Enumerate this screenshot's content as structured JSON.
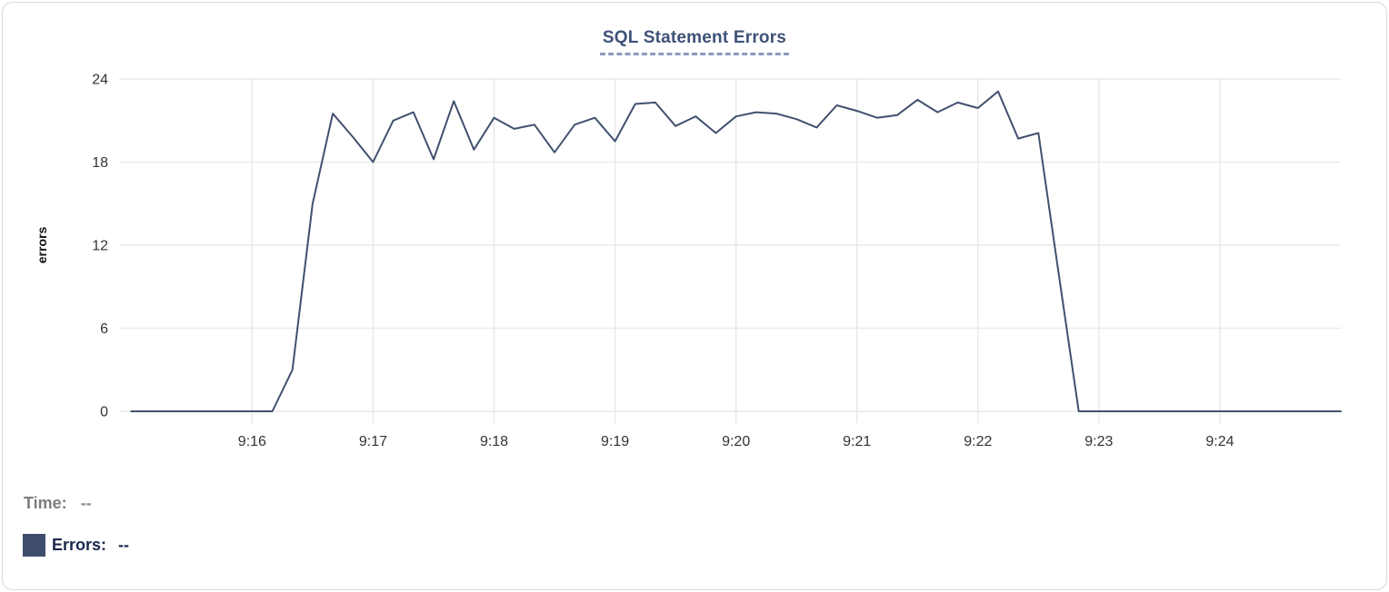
{
  "chart_data": {
    "type": "line",
    "title": "SQL Statement Errors",
    "xlabel": "",
    "ylabel": "errors",
    "y_ticks": [
      0,
      6,
      12,
      18,
      24
    ],
    "ylim": [
      0,
      24
    ],
    "x_tick_labels": [
      "9:16",
      "9:17",
      "9:18",
      "9:19",
      "9:20",
      "9:21",
      "9:22",
      "9:23",
      "9:24"
    ],
    "x_axis_range_after_9am_seconds": [
      894,
      1500
    ],
    "grid": true,
    "legend_position": "bottom-left",
    "series": [
      {
        "name": "Errors",
        "color": "#41506e",
        "times": [
          "9:15:00",
          "9:15:10",
          "9:15:20",
          "9:15:30",
          "9:15:40",
          "9:15:50",
          "9:16:00",
          "9:16:10",
          "9:16:20",
          "9:16:30",
          "9:16:40",
          "9:16:50",
          "9:17:00",
          "9:17:10",
          "9:17:20",
          "9:17:30",
          "9:17:40",
          "9:17:50",
          "9:18:00",
          "9:18:10",
          "9:18:20",
          "9:18:30",
          "9:18:40",
          "9:18:50",
          "9:19:00",
          "9:19:10",
          "9:19:20",
          "9:19:30",
          "9:19:40",
          "9:19:50",
          "9:20:00",
          "9:20:10",
          "9:20:20",
          "9:20:30",
          "9:20:40",
          "9:20:50",
          "9:21:00",
          "9:21:10",
          "9:21:20",
          "9:21:30",
          "9:21:40",
          "9:21:50",
          "9:22:00",
          "9:22:10",
          "9:22:20",
          "9:22:30",
          "9:22:40",
          "9:22:50",
          "9:23:00",
          "9:23:10",
          "9:23:20",
          "9:23:30",
          "9:23:40",
          "9:23:50",
          "9:24:00",
          "9:24:10",
          "9:24:20",
          "9:24:30",
          "9:24:40",
          "9:24:50",
          "9:25:00"
        ],
        "values": [
          0,
          0,
          0,
          0,
          0,
          0,
          0,
          0,
          3,
          15,
          21.5,
          19.8,
          18,
          21,
          21.6,
          18.2,
          22.4,
          18.9,
          21.2,
          20.4,
          20.7,
          18.7,
          20.7,
          21.2,
          19.5,
          22.2,
          22.3,
          20.6,
          21.3,
          20.1,
          21.3,
          21.6,
          21.5,
          21.1,
          20.5,
          22.1,
          21.7,
          21.2,
          21.4,
          22.5,
          21.6,
          22.3,
          21.9,
          23.1,
          19.7,
          20.1,
          10,
          0,
          0,
          0,
          0,
          0,
          0,
          0,
          0,
          0,
          0,
          0,
          0,
          0,
          0
        ]
      }
    ]
  },
  "tooltip_readout": {
    "time_label": "Time:",
    "time_value": "--",
    "errors_label": "Errors:",
    "errors_value": "--"
  },
  "colors": {
    "title": "#3e5277",
    "title_underline": "#8e9aba",
    "grid": "#e9e9e9",
    "tick_label": "#333333",
    "axis_label": "#111111",
    "line": "#41506e",
    "legend_time": "#7d7d7d",
    "legend_errors": "#1b294e",
    "swatch": "#3e4d6b",
    "card_border": "#d9d9d9"
  }
}
